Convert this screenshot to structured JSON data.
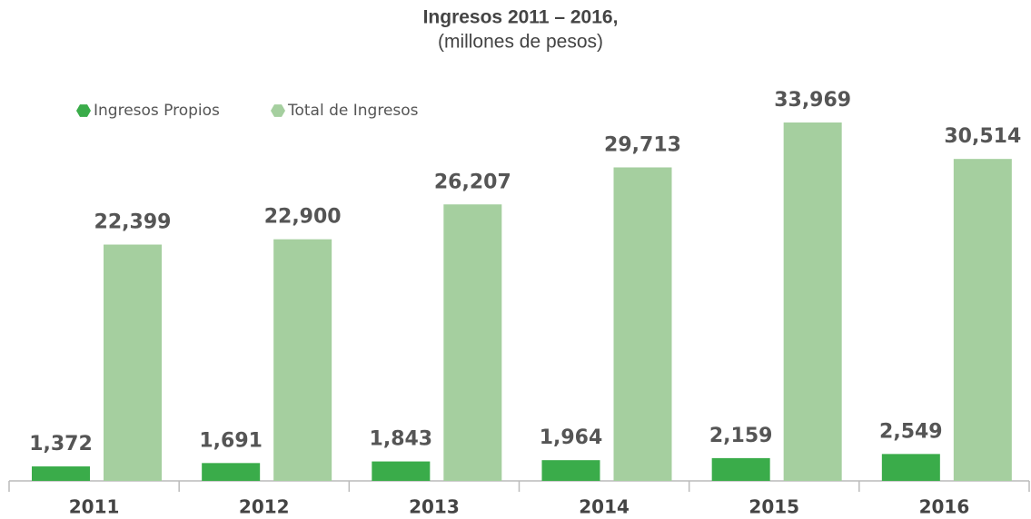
{
  "chart_data": {
    "type": "bar",
    "title": "Ingresos 2011 – 2016,",
    "subtitle": "(millones de pesos)",
    "categories": [
      "2011",
      "2012",
      "2013",
      "2014",
      "2015",
      "2016"
    ],
    "series": [
      {
        "name": "Ingresos Propios",
        "color": "#3aac4a",
        "values": [
          1372,
          1691,
          1843,
          1964,
          2159,
          2549
        ],
        "value_labels": [
          "1,372",
          "1,691",
          "1,843",
          "1,964",
          "2,159",
          "2,549"
        ]
      },
      {
        "name": "Total de Ingresos",
        "color": "#a5cf9f",
        "values": [
          22399,
          22900,
          26207,
          29713,
          33969,
          30514
        ],
        "value_labels": [
          "22,399",
          "22,900",
          "26,207",
          "29,713",
          "33,969",
          "30,514"
        ]
      }
    ]
  }
}
